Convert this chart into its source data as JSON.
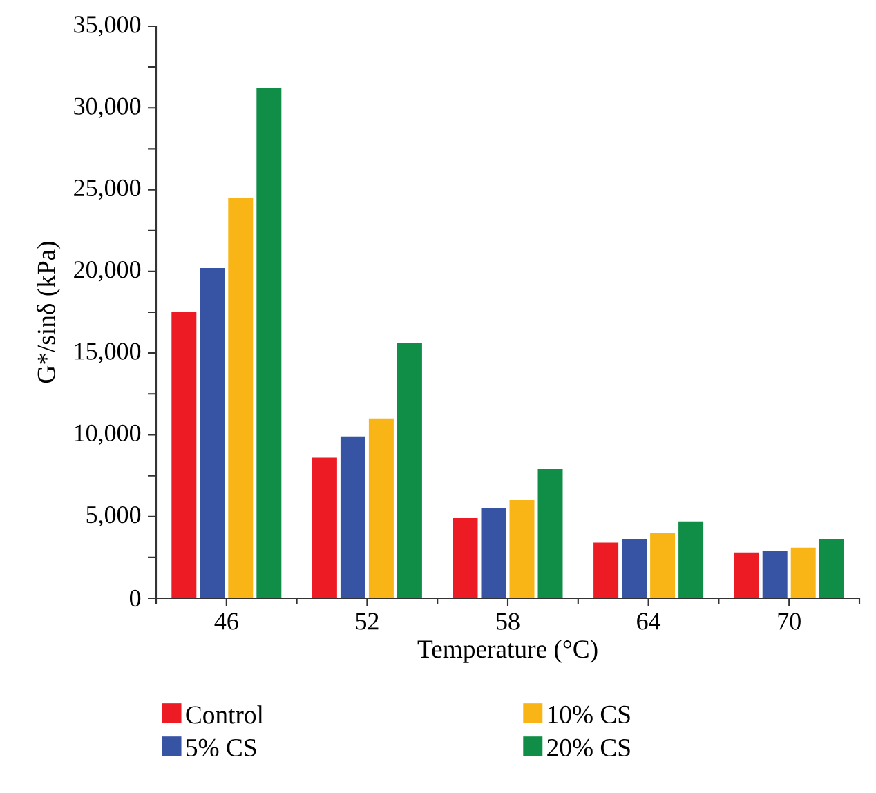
{
  "chart_data": {
    "type": "bar",
    "xlabel": "Temperature (°C)",
    "ylabel": "G*/sinδ (kPa)",
    "categories": [
      "46",
      "52",
      "58",
      "64",
      "70"
    ],
    "series": [
      {
        "name": "Control",
        "color": "#ed1c24",
        "values": [
          17500,
          8600,
          4900,
          3400,
          2800
        ]
      },
      {
        "name": "5% CS",
        "color": "#3653a4",
        "values": [
          20200,
          9900,
          5500,
          3600,
          2900
        ]
      },
      {
        "name": "10% CS",
        "color": "#f9b515",
        "values": [
          24500,
          11000,
          6000,
          4000,
          3100
        ]
      },
      {
        "name": "20% CS",
        "color": "#108e48",
        "values": [
          31200,
          15600,
          7900,
          4700,
          3600
        ]
      }
    ],
    "ylim": [
      0,
      35000
    ],
    "yticks": [
      {
        "value": 0,
        "label": "0"
      },
      {
        "value": 2500,
        "label": null
      },
      {
        "value": 5000,
        "label": "5,000"
      },
      {
        "value": 7500,
        "label": null
      },
      {
        "value": 10000,
        "label": "10,000"
      },
      {
        "value": 12500,
        "label": null
      },
      {
        "value": 15000,
        "label": "15,000"
      },
      {
        "value": 17500,
        "label": null
      },
      {
        "value": 20000,
        "label": "20,000"
      },
      {
        "value": 22500,
        "label": null
      },
      {
        "value": 25000,
        "label": "25,000"
      },
      {
        "value": 27500,
        "label": null
      },
      {
        "value": 30000,
        "label": "30,000"
      },
      {
        "value": 32500,
        "label": null
      },
      {
        "value": 35000,
        "label": "35,000"
      }
    ],
    "grid": false,
    "legend": "bottom"
  }
}
